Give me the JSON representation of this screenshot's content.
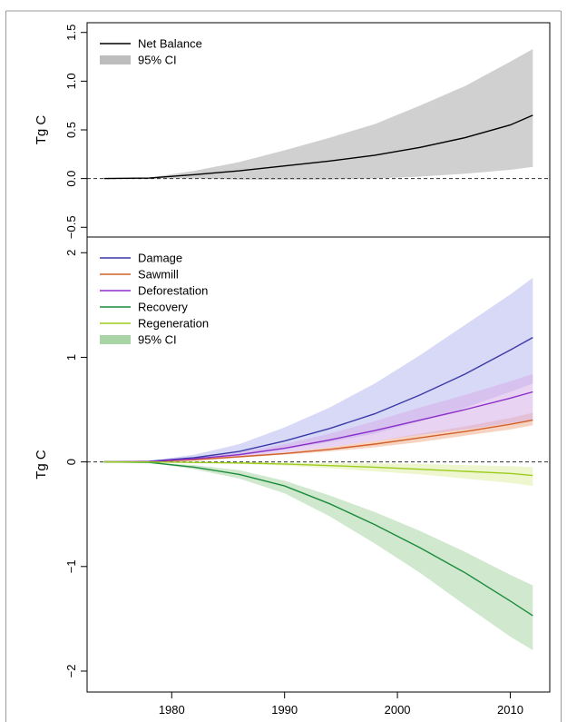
{
  "chart_data": [
    {
      "type": "area",
      "ylabel": "Tg C",
      "ylim": [
        -0.6,
        1.6
      ],
      "yticks": [
        "−0.5",
        "0.0",
        "0.5",
        "1.0",
        "1.5"
      ],
      "yticks_values": [
        -0.5,
        0.0,
        0.5,
        1.0,
        1.5
      ],
      "reference_line": 0,
      "legend_position": "top-left",
      "x": [
        1974,
        1978,
        1982,
        1986,
        1990,
        1994,
        1998,
        2002,
        2006,
        2010,
        2012
      ],
      "series": [
        {
          "name": "Net Balance",
          "color": "#000000",
          "values": [
            0,
            0.005,
            0.04,
            0.08,
            0.13,
            0.18,
            0.24,
            0.32,
            0.42,
            0.55,
            0.65
          ],
          "ci_lower": [
            0,
            0.0,
            0.0,
            -0.01,
            -0.01,
            -0.01,
            0.0,
            0.02,
            0.05,
            0.09,
            0.12
          ],
          "ci_upper": [
            0,
            0.01,
            0.08,
            0.17,
            0.29,
            0.42,
            0.56,
            0.75,
            0.95,
            1.2,
            1.33
          ]
        }
      ],
      "legend": [
        {
          "label": "Net Balance",
          "kind": "line",
          "color": "#000000"
        },
        {
          "label": "95% CI",
          "kind": "band",
          "color": "#bdbdbd"
        }
      ]
    },
    {
      "type": "area",
      "ylabel": "Tg C",
      "ylim": [
        -2.2,
        2.15
      ],
      "yticks": [
        "−2",
        "−1",
        "0",
        "1",
        "2"
      ],
      "yticks_values": [
        -2,
        -1,
        0,
        1,
        2
      ],
      "reference_line": 0,
      "legend_position": "top-left",
      "xlim": [
        1972.5,
        2013.5
      ],
      "xticks": [
        "1980",
        "1990",
        "2000",
        "2010"
      ],
      "xticks_values": [
        1980,
        1990,
        2000,
        2010
      ],
      "x": [
        1974,
        1978,
        1982,
        1986,
        1990,
        1994,
        1998,
        2002,
        2006,
        2010,
        2012
      ],
      "series": [
        {
          "name": "Damage",
          "color": "#3a3aa8",
          "ci_color": "#b8b8f0",
          "values": [
            0,
            0.005,
            0.04,
            0.1,
            0.2,
            0.32,
            0.46,
            0.64,
            0.84,
            1.07,
            1.19
          ],
          "ci_lower": [
            0,
            0.0,
            0.02,
            0.06,
            0.12,
            0.19,
            0.27,
            0.39,
            0.52,
            0.67,
            0.75
          ],
          "ci_upper": [
            0,
            0.01,
            0.07,
            0.17,
            0.33,
            0.52,
            0.75,
            1.02,
            1.31,
            1.6,
            1.76
          ]
        },
        {
          "name": "Sawmill",
          "color": "#d2602a",
          "ci_color": "#f0b090",
          "values": [
            0,
            0.003,
            0.02,
            0.05,
            0.08,
            0.12,
            0.17,
            0.23,
            0.29,
            0.36,
            0.4
          ],
          "ci_lower": [
            0,
            0.002,
            0.015,
            0.04,
            0.07,
            0.1,
            0.14,
            0.19,
            0.25,
            0.31,
            0.35
          ],
          "ci_upper": [
            0,
            0.004,
            0.025,
            0.06,
            0.09,
            0.14,
            0.2,
            0.27,
            0.34,
            0.42,
            0.47
          ]
        },
        {
          "name": "Deforestation",
          "color": "#8b2fc9",
          "ci_color": "#d6aeea",
          "values": [
            0,
            0.004,
            0.03,
            0.07,
            0.13,
            0.21,
            0.3,
            0.4,
            0.5,
            0.61,
            0.67
          ],
          "ci_lower": [
            0,
            0.003,
            0.02,
            0.05,
            0.09,
            0.14,
            0.2,
            0.26,
            0.31,
            0.37,
            0.4
          ],
          "ci_upper": [
            0,
            0.005,
            0.04,
            0.09,
            0.17,
            0.27,
            0.39,
            0.52,
            0.64,
            0.77,
            0.84
          ]
        },
        {
          "name": "Recovery",
          "color": "#1a8c3c",
          "ci_color": "#a9d5a6",
          "values": [
            0,
            -0.005,
            -0.05,
            -0.12,
            -0.23,
            -0.4,
            -0.6,
            -0.82,
            -1.06,
            -1.33,
            -1.47
          ],
          "ci_lower": [
            0,
            -0.007,
            -0.07,
            -0.16,
            -0.3,
            -0.52,
            -0.78,
            -1.06,
            -1.37,
            -1.67,
            -1.8
          ],
          "ci_upper": [
            0,
            -0.003,
            -0.03,
            -0.08,
            -0.18,
            -0.32,
            -0.48,
            -0.66,
            -0.86,
            -1.08,
            -1.18
          ]
        },
        {
          "name": "Regeneration",
          "color": "#9ccc1f",
          "ci_color": "#e0efa8",
          "values": [
            0,
            -0.001,
            -0.005,
            -0.01,
            -0.02,
            -0.035,
            -0.05,
            -0.07,
            -0.09,
            -0.11,
            -0.13
          ],
          "ci_lower": [
            0,
            -0.002,
            -0.01,
            -0.02,
            -0.035,
            -0.06,
            -0.09,
            -0.12,
            -0.16,
            -0.2,
            -0.23
          ],
          "ci_upper": [
            0,
            0,
            0,
            0,
            -0.005,
            -0.01,
            -0.015,
            -0.02,
            -0.03,
            -0.04,
            -0.05
          ]
        }
      ],
      "legend": [
        {
          "label": "Damage",
          "kind": "line",
          "color": "#3a3aa8"
        },
        {
          "label": "Sawmill",
          "kind": "line",
          "color": "#d2602a"
        },
        {
          "label": "Deforestation",
          "kind": "line",
          "color": "#8b2fc9"
        },
        {
          "label": "Recovery",
          "kind": "line",
          "color": "#1a8c3c"
        },
        {
          "label": "Regeneration",
          "kind": "line",
          "color": "#9ccc1f"
        },
        {
          "label": "95% CI",
          "kind": "band",
          "color": "#a9d5a6"
        }
      ]
    }
  ]
}
